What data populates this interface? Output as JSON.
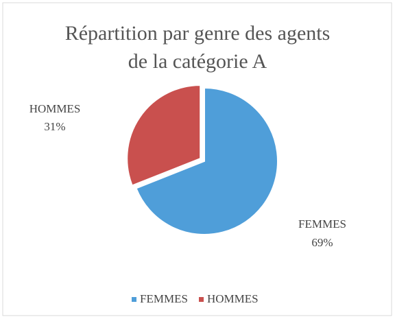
{
  "chart_data": {
    "type": "pie",
    "title": "Répartition par genre des agents de la catégorie A",
    "categories": [
      "FEMMES",
      "HOMMES"
    ],
    "values": [
      69,
      31
    ],
    "value_labels": [
      "69%",
      "31%"
    ],
    "colors": [
      "#4f9ed9",
      "#c9504e"
    ],
    "legend": "bottom"
  }
}
